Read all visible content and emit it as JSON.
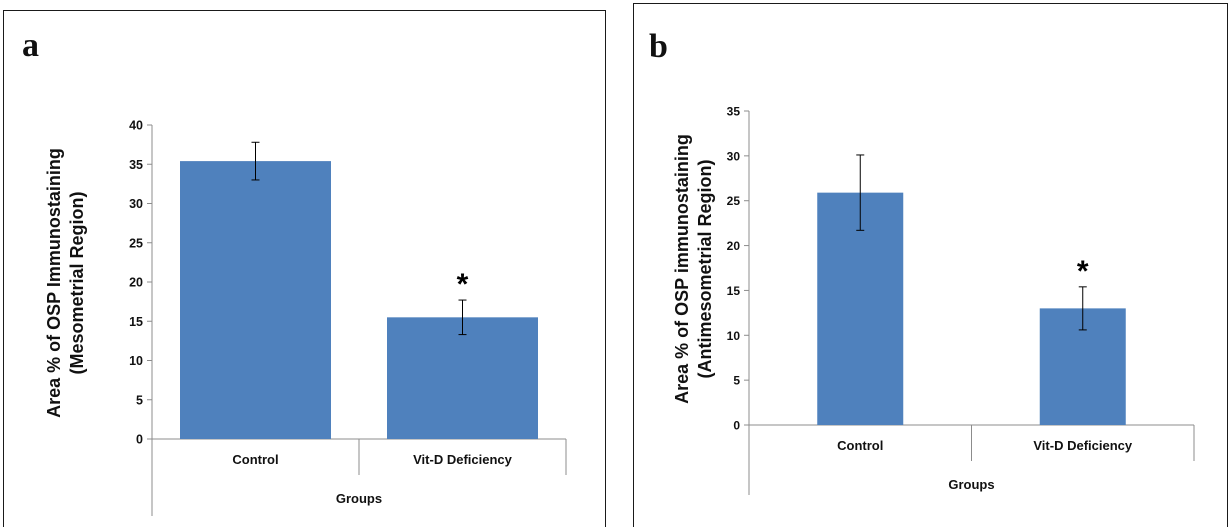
{
  "figure": {
    "panels": [
      {
        "letter": "a"
      },
      {
        "letter": "b"
      }
    ]
  },
  "colors": {
    "bar": "#4f81bd",
    "axis": "#8c8c8c",
    "text": "#111111"
  },
  "chart_data": [
    {
      "type": "bar",
      "title": "",
      "categories": [
        "Control",
        "Vit-D Deficiency"
      ],
      "values": [
        35.4,
        15.5
      ],
      "error": [
        2.4,
        2.2
      ],
      "annotations": [
        "",
        "*"
      ],
      "xlabel": "Groups",
      "ylabel": [
        "Area % of OSP Immunostaining",
        "(Mesometrial Region)"
      ],
      "ylim": [
        0,
        40
      ],
      "yticks": [
        0,
        5,
        10,
        15,
        20,
        25,
        30,
        35,
        40
      ],
      "grid": false,
      "legend": "none"
    },
    {
      "type": "bar",
      "title": "",
      "categories": [
        "Control",
        "Vit-D Deficiency"
      ],
      "values": [
        25.9,
        13.0
      ],
      "error": [
        4.2,
        2.4
      ],
      "annotations": [
        "",
        "*"
      ],
      "xlabel": "Groups",
      "ylabel": [
        "Area % of OSP immunostaining",
        "(Antimesometrial Region)"
      ],
      "ylim": [
        0,
        35
      ],
      "yticks": [
        0,
        5,
        10,
        15,
        20,
        25,
        30,
        35
      ],
      "grid": false,
      "legend": "none"
    }
  ]
}
